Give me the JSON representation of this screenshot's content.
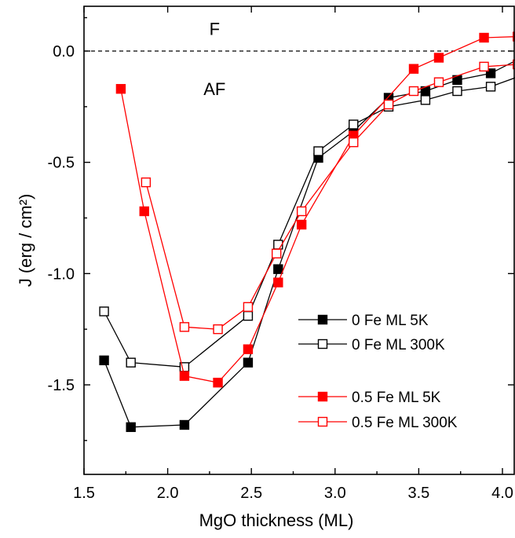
{
  "chart_data": {
    "type": "scatter",
    "xlabel": "MgO thickness     (ML)",
    "ylabel": "J (erg / cm²)",
    "xlim": [
      1.5,
      4.25
    ],
    "ylim": [
      -1.9,
      0.2
    ],
    "xticks": [
      1.5,
      2.0,
      2.5,
      3.0,
      3.5,
      4.0
    ],
    "yticks": [
      0.0,
      -0.5,
      -1.0,
      -1.5
    ],
    "xtick_labels": [
      "1.5",
      "2.0",
      "2.5",
      "3.0",
      "3.5",
      "4.0"
    ],
    "ytick_labels": [
      "0.0",
      "-0.5",
      "-1.0",
      "-1.5"
    ],
    "reference_line": {
      "y": 0.0,
      "style": "dashed"
    },
    "annotations": [
      {
        "text": "F",
        "x": 2.28,
        "y": 0.1
      },
      {
        "text": "AF",
        "x": 2.28,
        "y": -0.17
      }
    ],
    "legend_position": "bottom-right",
    "series": [
      {
        "name": "0 Fe ML  5K",
        "color": "#000000",
        "marker": "square-filled",
        "x": [
          1.62,
          1.78,
          2.1,
          2.48,
          2.66,
          2.9,
          3.11,
          3.32,
          3.54,
          3.73,
          3.93,
          4.14
        ],
        "y": [
          -1.39,
          -1.69,
          -1.68,
          -1.4,
          -0.98,
          -0.48,
          -0.36,
          -0.21,
          -0.18,
          -0.13,
          -0.1,
          -0.02
        ]
      },
      {
        "name": "0 Fe ML  300K",
        "color": "#000000",
        "marker": "square-open",
        "x": [
          1.62,
          1.78,
          2.1,
          2.48,
          2.66,
          2.9,
          3.11,
          3.32,
          3.54,
          3.73,
          3.93,
          4.15
        ],
        "y": [
          -1.17,
          -1.4,
          -1.42,
          -1.19,
          -0.87,
          -0.45,
          -0.33,
          -0.25,
          -0.22,
          -0.18,
          -0.16,
          -0.1
        ]
      },
      {
        "name": "0.5 Fe ML  5K",
        "color": "#ff0000",
        "marker": "square-filled",
        "x": [
          1.72,
          1.86,
          2.1,
          2.3,
          2.48,
          2.66,
          2.8,
          3.11,
          3.47,
          3.62,
          3.89,
          4.09
        ],
        "y": [
          -0.17,
          -0.72,
          -1.46,
          -1.49,
          -1.34,
          -1.04,
          -0.78,
          -0.38,
          -0.08,
          -0.03,
          0.06,
          0.065
        ]
      },
      {
        "name": "0.5 Fe ML  300K",
        "color": "#ff0000",
        "marker": "square-open",
        "x": [
          1.87,
          2.1,
          2.3,
          2.48,
          2.65,
          2.8,
          3.11,
          3.32,
          3.47,
          3.62,
          3.89,
          4.09
        ],
        "y": [
          -0.59,
          -1.24,
          -1.25,
          -1.15,
          -0.91,
          -0.72,
          -0.41,
          -0.24,
          -0.18,
          -0.14,
          -0.07,
          -0.06
        ]
      }
    ]
  }
}
